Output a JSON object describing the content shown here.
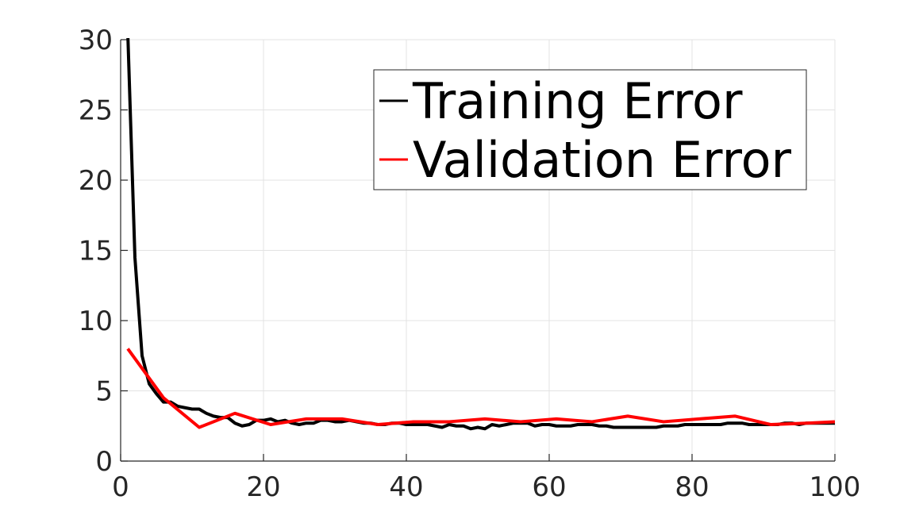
{
  "chart_data": {
    "type": "line",
    "title": "",
    "xlabel": "",
    "ylabel": "",
    "xlim": [
      0,
      100
    ],
    "ylim": [
      0,
      30
    ],
    "xticks": [
      "0",
      "20",
      "40",
      "60",
      "80",
      "100"
    ],
    "yticks": [
      "0",
      "5",
      "10",
      "15",
      "20",
      "25",
      "30"
    ],
    "grid": true,
    "legend_position": "top-right",
    "series": [
      {
        "name": "Training Error",
        "color": "#000000",
        "x": [
          1,
          2,
          3,
          4,
          5,
          6,
          7,
          8,
          9,
          10,
          11,
          12,
          13,
          14,
          15,
          16,
          17,
          18,
          19,
          20,
          21,
          22,
          23,
          24,
          25,
          26,
          27,
          28,
          29,
          30,
          31,
          32,
          33,
          34,
          35,
          36,
          37,
          38,
          39,
          40,
          41,
          42,
          43,
          44,
          45,
          46,
          47,
          48,
          49,
          50,
          51,
          52,
          53,
          54,
          55,
          56,
          57,
          58,
          59,
          60,
          61,
          62,
          63,
          64,
          65,
          66,
          67,
          68,
          69,
          70,
          71,
          72,
          73,
          74,
          75,
          76,
          77,
          78,
          79,
          80,
          81,
          82,
          83,
          84,
          85,
          86,
          87,
          88,
          89,
          90,
          91,
          92,
          93,
          94,
          95,
          96,
          97,
          98,
          99,
          100
        ],
        "values": [
          30.5,
          14.5,
          7.5,
          5.5,
          4.8,
          4.2,
          4.2,
          3.9,
          3.8,
          3.7,
          3.7,
          3.4,
          3.2,
          3.1,
          3.1,
          2.7,
          2.5,
          2.6,
          2.9,
          2.9,
          3.0,
          2.8,
          2.9,
          2.7,
          2.6,
          2.7,
          2.7,
          2.9,
          2.9,
          2.8,
          2.8,
          2.9,
          2.8,
          2.7,
          2.7,
          2.6,
          2.6,
          2.7,
          2.7,
          2.6,
          2.6,
          2.6,
          2.6,
          2.5,
          2.4,
          2.6,
          2.5,
          2.5,
          2.3,
          2.4,
          2.3,
          2.6,
          2.5,
          2.6,
          2.7,
          2.7,
          2.7,
          2.5,
          2.6,
          2.6,
          2.5,
          2.5,
          2.5,
          2.6,
          2.6,
          2.6,
          2.5,
          2.5,
          2.4,
          2.4,
          2.4,
          2.4,
          2.4,
          2.4,
          2.4,
          2.5,
          2.5,
          2.5,
          2.6,
          2.6,
          2.6,
          2.6,
          2.6,
          2.6,
          2.7,
          2.7,
          2.7,
          2.6,
          2.6,
          2.6,
          2.6,
          2.6,
          2.7,
          2.7,
          2.6,
          2.7,
          2.7,
          2.7,
          2.7,
          2.7
        ]
      },
      {
        "name": "Validation Error",
        "color": "#ff0000",
        "x": [
          1,
          6,
          11,
          16,
          21,
          26,
          31,
          36,
          41,
          46,
          51,
          56,
          61,
          66,
          71,
          76,
          81,
          86,
          91,
          96,
          100
        ],
        "values": [
          8.0,
          4.5,
          2.4,
          3.4,
          2.6,
          3.0,
          3.0,
          2.6,
          2.8,
          2.8,
          3.0,
          2.8,
          3.0,
          2.8,
          3.2,
          2.8,
          3.0,
          3.2,
          2.6,
          2.7,
          2.8
        ]
      }
    ]
  }
}
